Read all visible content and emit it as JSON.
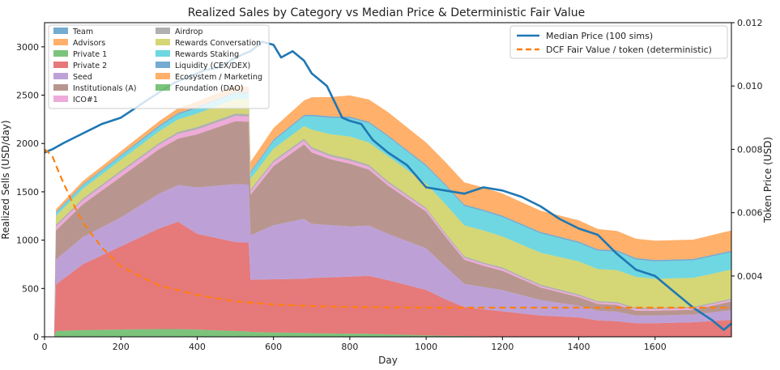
{
  "chart_data": {
    "type": "area",
    "title": "Realized Sales by Category vs Median Price & Deterministic Fair Value",
    "xlabel": "Day",
    "ylabel": "Realized Sells (USD/day)",
    "ylabel_right": "Token Price (USD)",
    "xlim": [
      0,
      1800
    ],
    "ylim": [
      0,
      3250
    ],
    "ylim_right": [
      0.00208,
      0.012
    ],
    "x_ticks": [
      "0",
      "200",
      "400",
      "600",
      "800",
      "1000",
      "1200",
      "1400",
      "1600"
    ],
    "y_ticks": [
      "0",
      "500",
      "1000",
      "1500",
      "2000",
      "2500",
      "3000"
    ],
    "y_ticks_right": [
      "0.004",
      "0.006",
      "0.008",
      "0.010",
      "0.012"
    ],
    "x": [
      0,
      25,
      30,
      100,
      200,
      300,
      350,
      400,
      500,
      535,
      540,
      600,
      680,
      700,
      750,
      800,
      850,
      900,
      1000,
      1050,
      1100,
      1150,
      1200,
      1300,
      1400,
      1450,
      1500,
      1550,
      1600,
      1700,
      1800
    ],
    "series": [
      {
        "name": "Team",
        "color": "#1f77b4",
        "values": [
          0,
          0,
          0,
          0,
          0,
          0,
          0,
          0,
          0,
          0,
          0,
          0,
          0,
          0,
          0,
          0,
          0,
          0,
          0,
          0,
          0,
          0,
          0,
          0,
          0,
          0,
          0,
          0,
          0,
          0,
          0
        ]
      },
      {
        "name": "Advisors",
        "color": "#ff7f0e",
        "values": [
          0,
          0,
          0,
          0,
          0,
          0,
          0,
          0,
          0,
          0,
          0,
          0,
          0,
          0,
          0,
          0,
          0,
          0,
          0,
          0,
          0,
          0,
          0,
          0,
          0,
          0,
          0,
          0,
          0,
          0,
          0
        ]
      },
      {
        "name": "Private 1",
        "color": "#2ca02c",
        "values": [
          0,
          0,
          60,
          70,
          75,
          80,
          80,
          75,
          60,
          55,
          50,
          45,
          40,
          38,
          35,
          32,
          30,
          25,
          15,
          10,
          8,
          5,
          3,
          0,
          0,
          0,
          0,
          0,
          0,
          0,
          0
        ]
      },
      {
        "name": "Private 2",
        "color": "#d62728",
        "values": [
          0,
          0,
          480,
          680,
          860,
          1040,
          1110,
          990,
          920,
          920,
          540,
          550,
          560,
          570,
          580,
          590,
          600,
          560,
          470,
          380,
          300,
          280,
          260,
          220,
          200,
          170,
          160,
          140,
          140,
          150,
          175
        ]
      },
      {
        "name": "Seed",
        "color": "#9467bd",
        "values": [
          0,
          0,
          260,
          280,
          300,
          360,
          380,
          480,
          600,
          600,
          460,
          560,
          620,
          560,
          540,
          520,
          520,
          480,
          430,
          340,
          240,
          230,
          220,
          160,
          120,
          100,
          100,
          80,
          80,
          80,
          100
        ]
      },
      {
        "name": "Institutionals (A)",
        "color": "#8c564b",
        "values": [
          0,
          0,
          300,
          340,
          420,
          460,
          480,
          550,
          650,
          650,
          420,
          610,
          770,
          740,
          680,
          650,
          580,
          500,
          380,
          310,
          250,
          220,
          200,
          130,
          90,
          70,
          70,
          50,
          50,
          50,
          90
        ]
      },
      {
        "name": "ICO#1",
        "color": "#e377c2",
        "values": [
          0,
          0,
          40,
          40,
          45,
          45,
          50,
          50,
          55,
          55,
          35,
          40,
          40,
          35,
          30,
          30,
          30,
          25,
          25,
          20,
          20,
          20,
          20,
          15,
          15,
          15,
          15,
          15,
          15,
          15,
          15
        ]
      },
      {
        "name": "Airdrop",
        "color": "#7f7f7f",
        "values": [
          0,
          0,
          20,
          20,
          20,
          20,
          20,
          25,
          25,
          25,
          20,
          20,
          20,
          20,
          20,
          20,
          20,
          20,
          15,
          15,
          15,
          15,
          15,
          15,
          15,
          15,
          15,
          15,
          15,
          15,
          15
        ]
      },
      {
        "name": "Rewards Conversation",
        "color": "#bcbd22",
        "values": [
          0,
          0,
          90,
          100,
          110,
          120,
          130,
          140,
          150,
          150,
          110,
          120,
          130,
          180,
          210,
          230,
          230,
          260,
          250,
          300,
          320,
          330,
          320,
          330,
          340,
          330,
          330,
          320,
          300,
          300,
          300
        ]
      },
      {
        "name": "Rewards Staking",
        "color": "#17becf",
        "values": [
          0,
          0,
          30,
          35,
          40,
          45,
          50,
          55,
          60,
          60,
          60,
          80,
          100,
          140,
          170,
          190,
          200,
          200,
          180,
          190,
          200,
          200,
          200,
          200,
          190,
          190,
          190,
          180,
          180,
          180,
          180
        ]
      },
      {
        "name": "Liquidity (CEX/DEX)",
        "color": "#1f77b4",
        "values": [
          0,
          0,
          10,
          10,
          10,
          15,
          15,
          15,
          15,
          15,
          15,
          15,
          15,
          15,
          15,
          15,
          15,
          15,
          15,
          15,
          15,
          15,
          15,
          15,
          15,
          15,
          15,
          15,
          15,
          15,
          15
        ]
      },
      {
        "name": "Ecosystem / Marketing",
        "color": "#ff7f0e",
        "values": [
          0,
          0,
          30,
          35,
          40,
          45,
          50,
          55,
          60,
          60,
          100,
          120,
          150,
          180,
          200,
          220,
          230,
          240,
          230,
          230,
          230,
          230,
          230,
          220,
          220,
          210,
          200,
          200,
          200,
          200,
          210
        ]
      },
      {
        "name": "Foundation (DAO)",
        "color": "#2ca02c",
        "values": [
          0,
          0,
          0,
          0,
          0,
          0,
          0,
          0,
          0,
          0,
          0,
          0,
          0,
          0,
          0,
          0,
          0,
          0,
          0,
          0,
          0,
          0,
          0,
          0,
          0,
          0,
          0,
          0,
          0,
          0,
          0
        ]
      }
    ],
    "line_series": [
      {
        "name": "Median Price (100 sims)",
        "color": "#1f77b4",
        "style": "solid",
        "x": [
          0,
          20,
          50,
          100,
          150,
          200,
          250,
          300,
          340,
          380,
          420,
          460,
          500,
          540,
          570,
          600,
          620,
          650,
          680,
          700,
          720,
          740,
          760,
          780,
          800,
          830,
          860,
          900,
          950,
          1000,
          1050,
          1100,
          1150,
          1200,
          1250,
          1300,
          1350,
          1400,
          1450,
          1500,
          1550,
          1600,
          1650,
          1700,
          1750,
          1780,
          1800
        ],
        "values": [
          0.0079,
          0.008,
          0.0082,
          0.0085,
          0.0088,
          0.009,
          0.0094,
          0.0098,
          0.0101,
          0.0103,
          0.0105,
          0.0106,
          0.0109,
          0.0111,
          0.0114,
          0.0113,
          0.0109,
          0.0111,
          0.0108,
          0.0104,
          0.0102,
          0.01,
          0.0095,
          0.009,
          0.0089,
          0.0088,
          0.0083,
          0.0079,
          0.0075,
          0.0068,
          0.0067,
          0.0066,
          0.0068,
          0.0067,
          0.0065,
          0.0062,
          0.0058,
          0.0055,
          0.0053,
          0.0047,
          0.0042,
          0.004,
          0.0035,
          0.003,
          0.0026,
          0.0023,
          0.0025
        ]
      },
      {
        "name": "DCF Fair Value / token (deterministic)",
        "color": "#ff7f0e",
        "style": "dashed",
        "x": [
          0,
          20,
          40,
          70,
          100,
          150,
          200,
          300,
          400,
          500,
          600,
          700,
          800,
          1000,
          1200,
          1400,
          1600,
          1800
        ],
        "values": [
          0.008,
          0.0078,
          0.0072,
          0.0064,
          0.0057,
          0.0049,
          0.0043,
          0.0037,
          0.0034,
          0.0032,
          0.0031,
          0.00305,
          0.00302,
          0.003,
          0.003,
          0.003,
          0.003,
          0.003
        ]
      }
    ],
    "legend_left_placement": "top-left",
    "legend_right_placement": "top-right"
  }
}
